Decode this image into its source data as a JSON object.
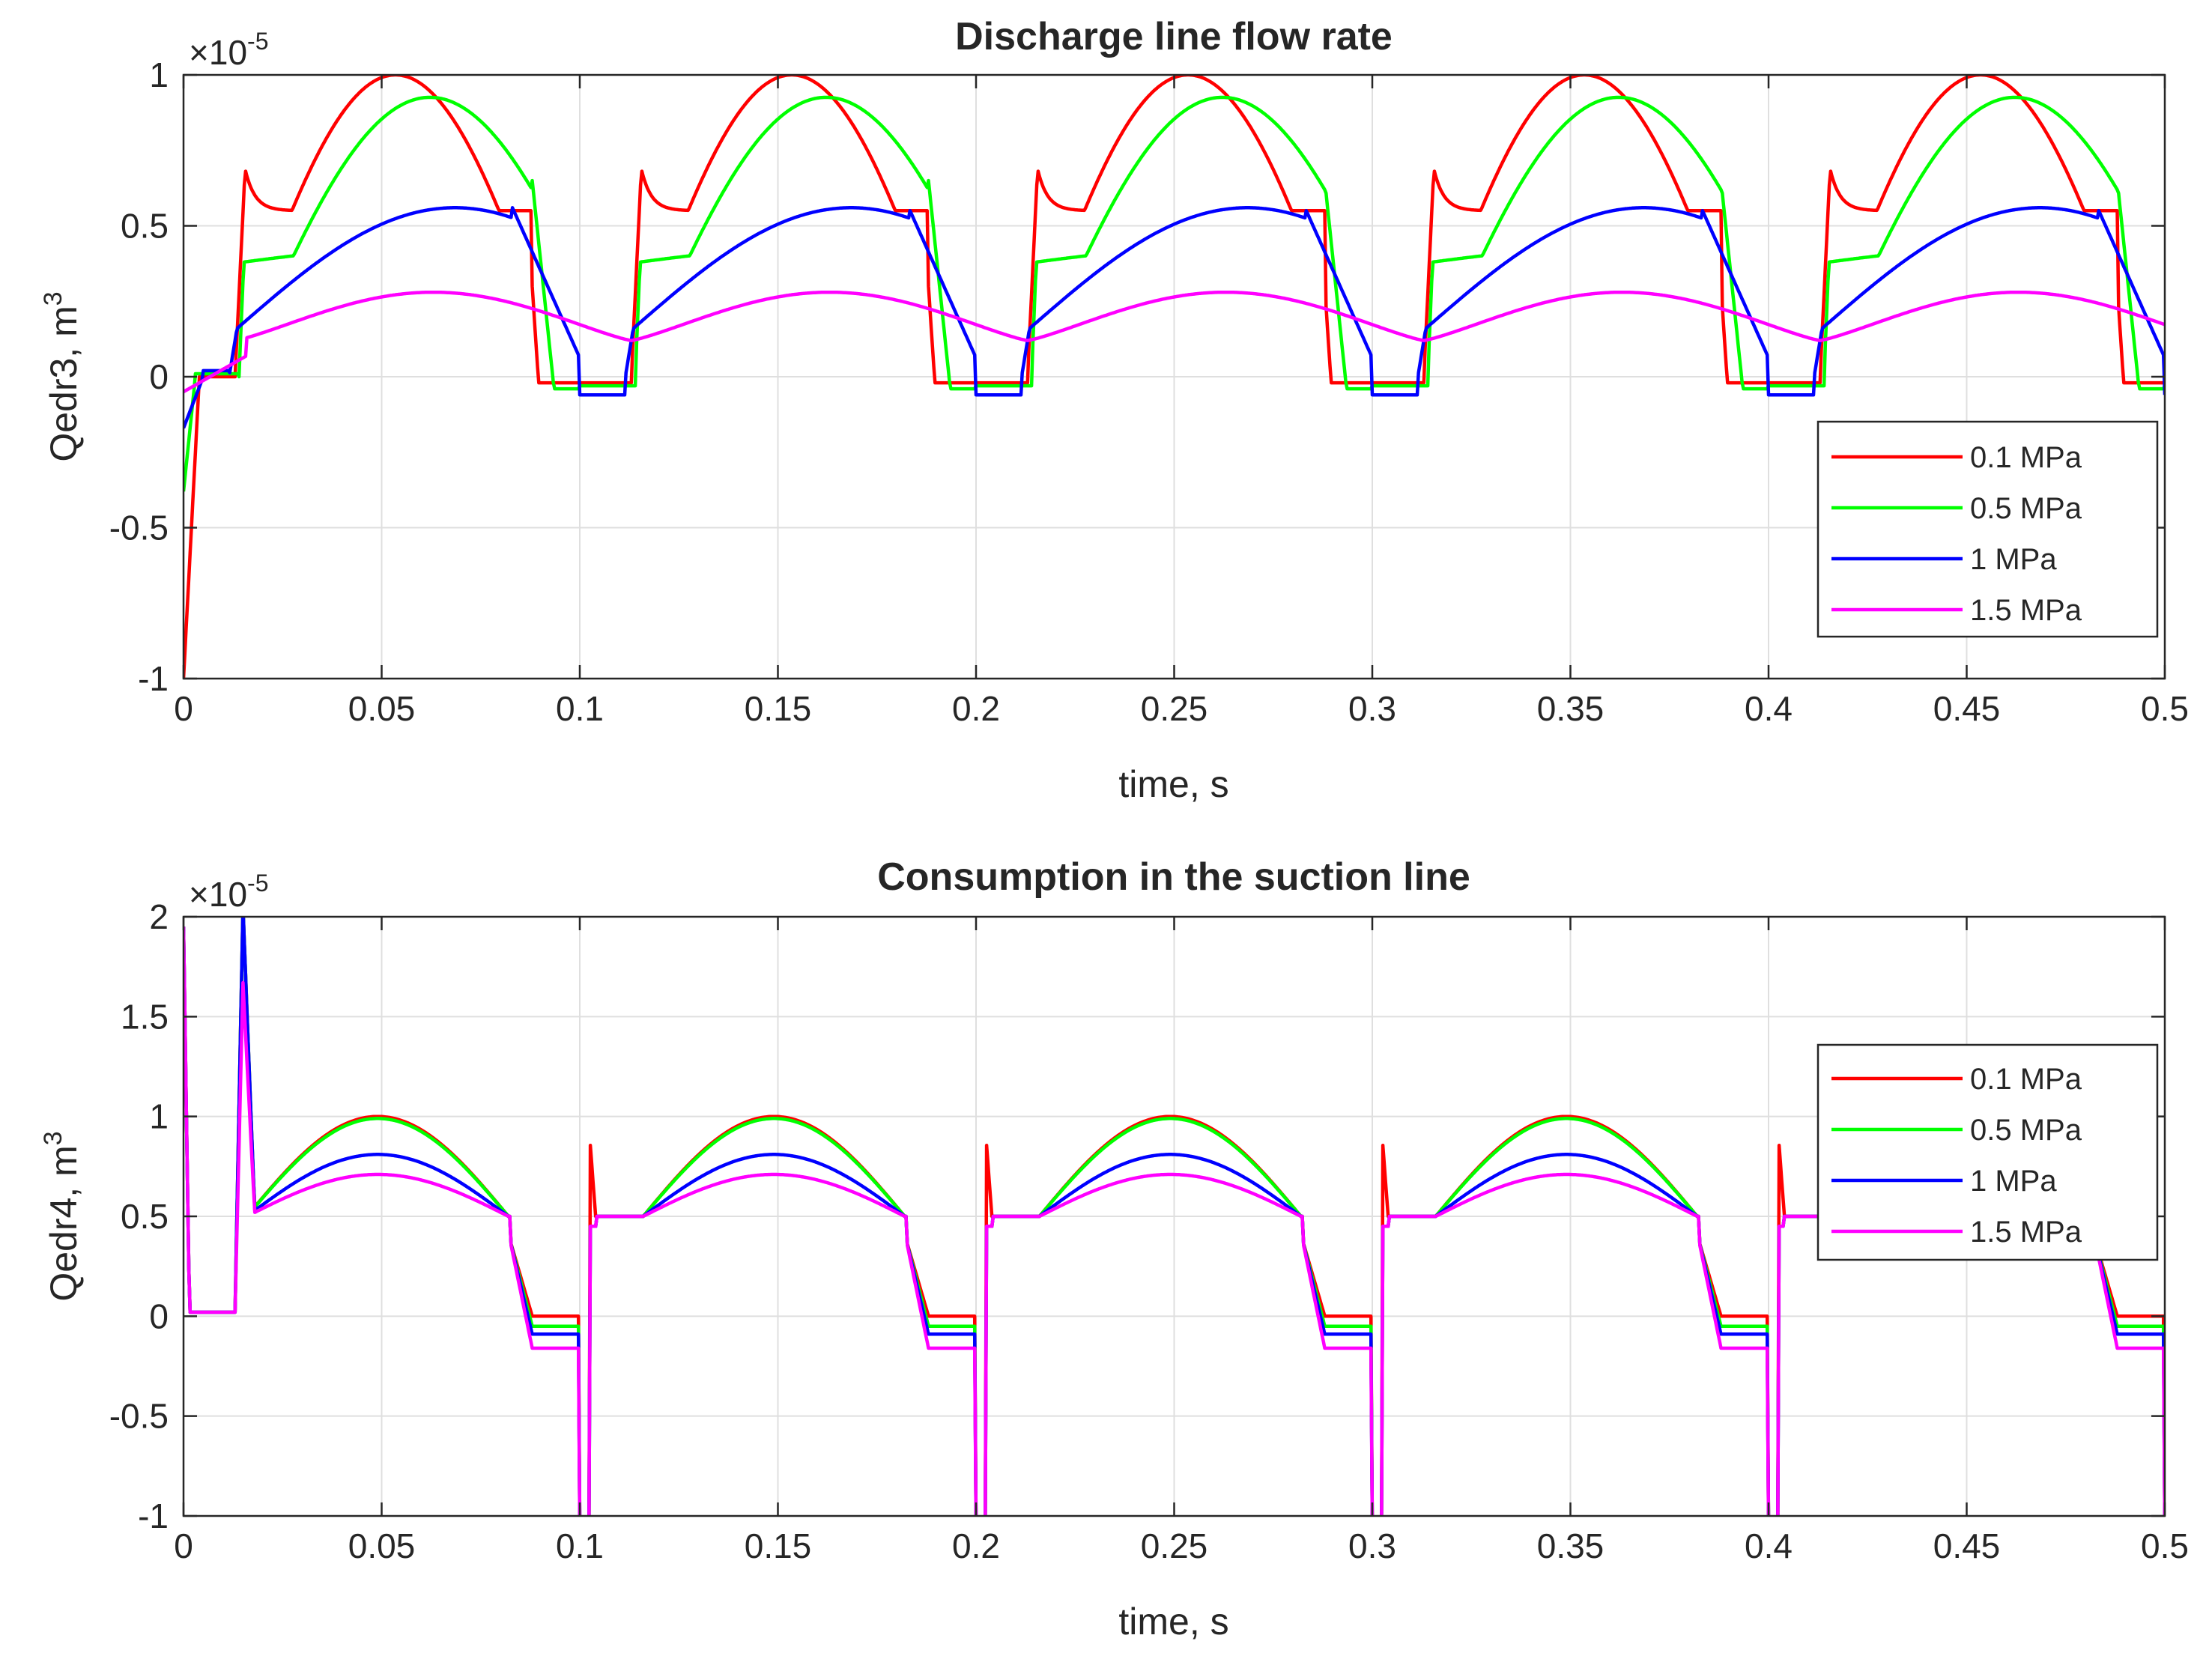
{
  "chart_data": [
    {
      "type": "line",
      "title": "Discharge line flow rate",
      "xlabel": "time, s",
      "ylabel": "Qedr3, m",
      "ylabel_sup": "3",
      "y_exponent": "×10",
      "y_exponent_power": "-5",
      "xlim": [
        0,
        0.5
      ],
      "ylim": [
        -1,
        1
      ],
      "xticks": [
        "0",
        "0.05",
        "0.1",
        "0.15",
        "0.2",
        "0.25",
        "0.3",
        "0.35",
        "0.4",
        "0.45",
        "0.5"
      ],
      "yticks": [
        "-1",
        "-0.5",
        "0",
        "0.5",
        "1"
      ],
      "grid": true,
      "legend_location": "right",
      "series": [
        {
          "name": "0.1 MPa",
          "color": "#ff0000",
          "role": "top_p01",
          "peak": 1.0
        },
        {
          "name": "0.5 MPa",
          "color": "#00ff00",
          "role": "top_p05",
          "peak": 0.89
        },
        {
          "name": "1 MPa",
          "color": "#0000ff",
          "role": "top_p1",
          "peak": 0.56
        },
        {
          "name": "1.5 MPa",
          "color": "#ff00ff",
          "role": "top_p15",
          "peak": 0.28
        }
      ]
    },
    {
      "type": "line",
      "title": "Consumption in the suction line",
      "xlabel": "time, s",
      "ylabel": "Qedr4, m",
      "ylabel_sup": "3",
      "y_exponent": "×10",
      "y_exponent_power": "-5",
      "xlim": [
        0,
        0.5
      ],
      "ylim": [
        -1,
        2
      ],
      "xticks": [
        "0",
        "0.05",
        "0.1",
        "0.15",
        "0.2",
        "0.25",
        "0.3",
        "0.35",
        "0.4",
        "0.45",
        "0.5"
      ],
      "yticks": [
        "-1",
        "-0.5",
        "0",
        "0.5",
        "1",
        "1.5",
        "2"
      ],
      "grid": true,
      "legend_location": "upper right",
      "series": [
        {
          "name": "0.1 MPa",
          "color": "#ff0000",
          "role": "bot_p01",
          "peak": 1.0,
          "low": 0.0
        },
        {
          "name": "0.5 MPa",
          "color": "#00ff00",
          "role": "bot_p05",
          "peak": 0.99,
          "low": -0.05
        },
        {
          "name": "1 MPa",
          "color": "#0000ff",
          "role": "bot_p1",
          "peak": 0.81,
          "low": -0.09
        },
        {
          "name": "1.5 MPa",
          "color": "#ff00ff",
          "role": "bot_p15",
          "peak": 0.71,
          "low": -0.16
        }
      ]
    }
  ]
}
